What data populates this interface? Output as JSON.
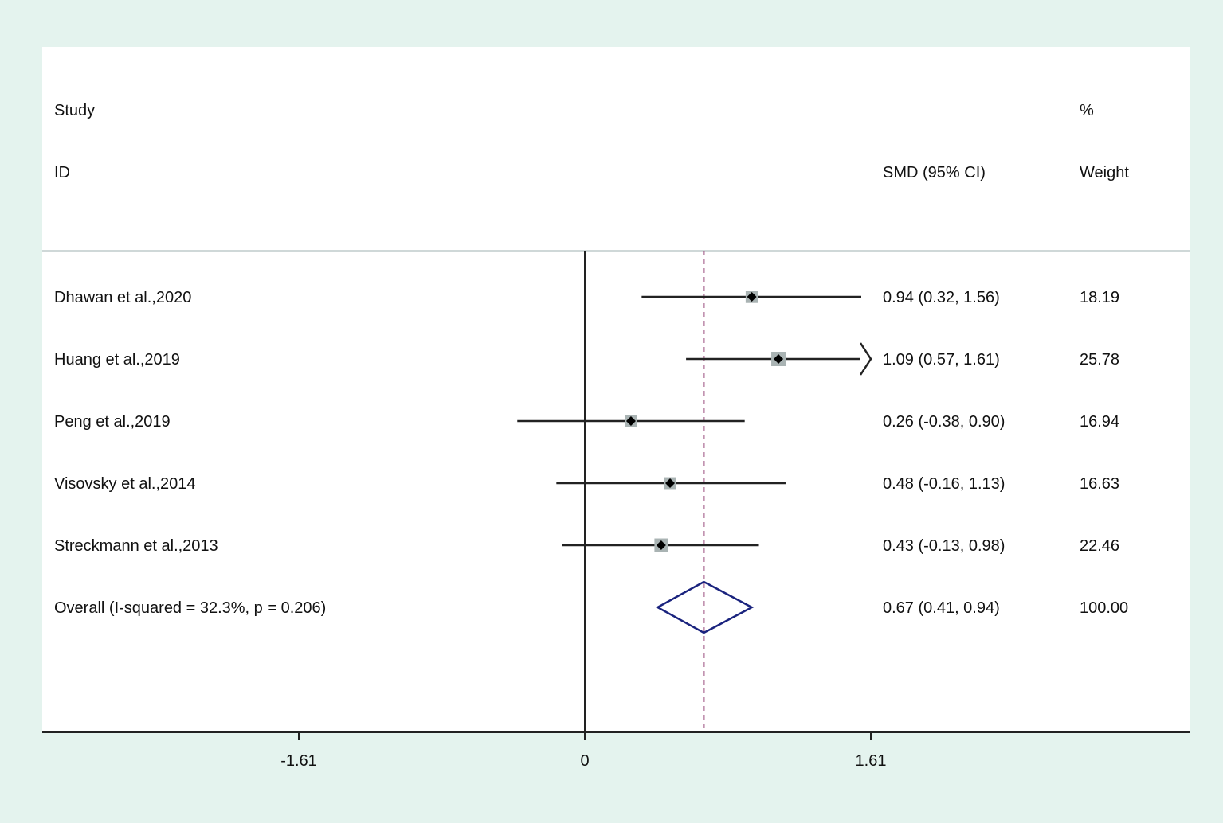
{
  "header": {
    "study_label": "Study",
    "id_label": "ID",
    "effect_label": "SMD (95% CI)",
    "pct_label": "%",
    "weight_label": "Weight"
  },
  "colors": {
    "background": "#e4f3ee",
    "panel": "#ffffff",
    "ci_line": "#222222",
    "weight_box": "#a9b3b3",
    "point": "#000000",
    "pooled_diamond": "#1a237e",
    "overall_line": "#9b4f7e",
    "null_line": "#222222"
  },
  "chart_data": {
    "type": "forest",
    "effect_measure": "SMD",
    "x_ticks": [
      -1.61,
      0,
      1.61
    ],
    "x_tick_labels": [
      "-1.61",
      "0",
      "1.61"
    ],
    "xlim": [
      -1.61,
      1.61
    ],
    "null_value": 0,
    "studies": [
      {
        "name": "Dhawan et al.,2020",
        "smd": 0.94,
        "lower": 0.32,
        "upper": 1.56,
        "ci_text": "0.94 (0.32, 1.56)",
        "weight": 18.19,
        "weight_text": "18.19",
        "arrow_right": false
      },
      {
        "name": "Huang et al.,2019",
        "smd": 1.09,
        "lower": 0.57,
        "upper": 1.61,
        "ci_text": "1.09 (0.57, 1.61)",
        "weight": 25.78,
        "weight_text": "25.78",
        "arrow_right": true
      },
      {
        "name": "Peng et al.,2019",
        "smd": 0.26,
        "lower": -0.38,
        "upper": 0.9,
        "ci_text": "0.26 (-0.38, 0.90)",
        "weight": 16.94,
        "weight_text": "16.94",
        "arrow_right": false
      },
      {
        "name": "Visovsky et al.,2014",
        "smd": 0.48,
        "lower": -0.16,
        "upper": 1.13,
        "ci_text": "0.48 (-0.16, 1.13)",
        "weight": 16.63,
        "weight_text": "16.63",
        "arrow_right": false
      },
      {
        "name": "Streckmann et al.,2013",
        "smd": 0.43,
        "lower": -0.13,
        "upper": 0.98,
        "ci_text": "0.43 (-0.13, 0.98)",
        "weight": 22.46,
        "weight_text": "22.46",
        "arrow_right": false
      }
    ],
    "overall": {
      "name": "Overall  (I-squared = 32.3%, p = 0.206)",
      "smd": 0.67,
      "lower": 0.41,
      "upper": 0.94,
      "ci_text": "0.67 (0.41, 0.94)",
      "weight_text": "100.00"
    }
  }
}
